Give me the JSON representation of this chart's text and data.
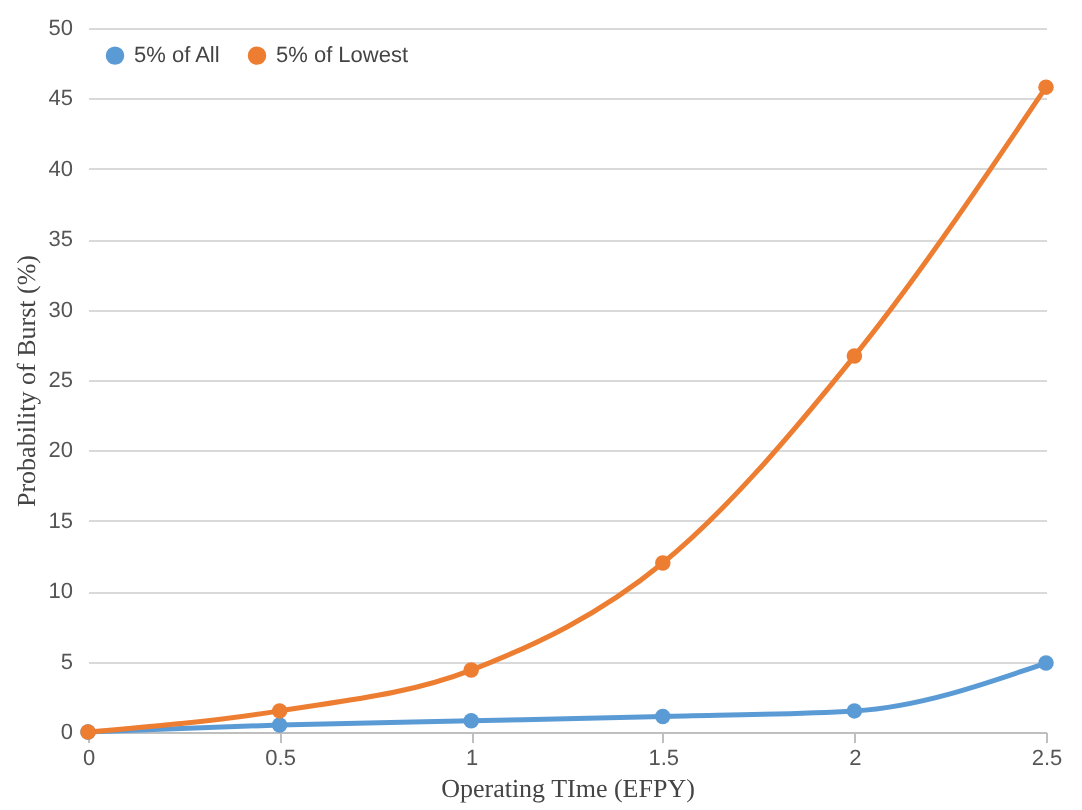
{
  "chart_data": {
    "type": "line",
    "xlabel": "Operating TIme (EFPY)",
    "ylabel": "Probability of Burst (%)",
    "x": [
      0,
      0.5,
      1,
      1.5,
      2,
      2.5
    ],
    "series": [
      {
        "name": "5% of All",
        "color": "#5b9bd5",
        "values": [
          0,
          0.5,
          0.8,
          1.1,
          1.5,
          4.9
        ]
      },
      {
        "name": "5% of Lowest",
        "color": "#ed7d31",
        "values": [
          0,
          1.5,
          4.4,
          12,
          26.7,
          45.8
        ]
      }
    ],
    "xlim": [
      0,
      2.5
    ],
    "xticks": [
      0,
      0.5,
      1,
      1.5,
      2,
      2.5
    ],
    "ylim": [
      0,
      50
    ],
    "yticks": [
      0,
      5,
      10,
      15,
      20,
      25,
      30,
      35,
      40,
      45,
      50
    ],
    "grid": "y",
    "legend": "top left",
    "marker": "circle",
    "line_style": "solid"
  }
}
